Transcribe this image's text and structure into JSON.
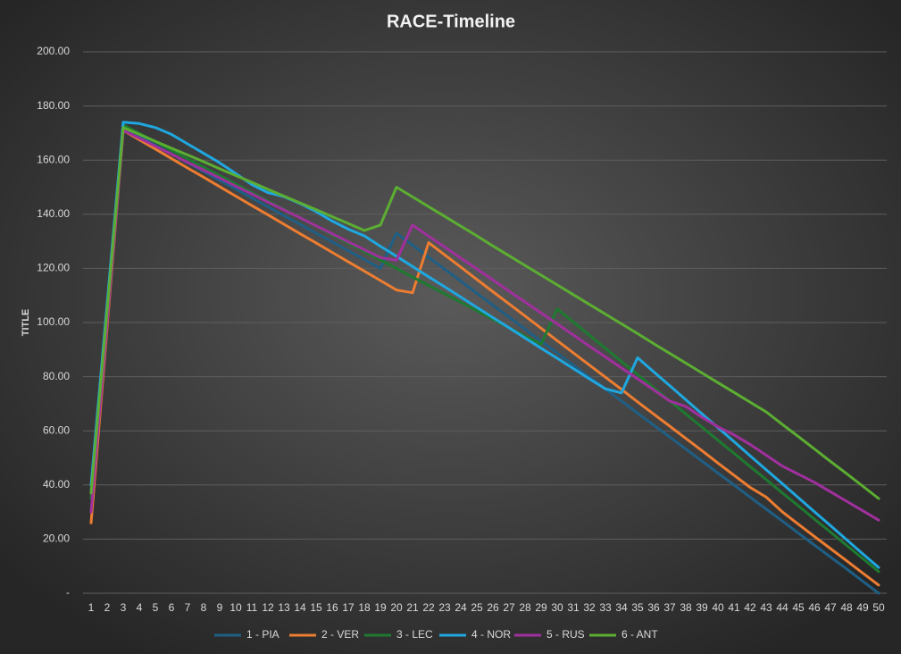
{
  "chart_data": {
    "type": "line",
    "title": "RACE-Timeline",
    "y_label": "TITLE",
    "categories": [
      1,
      2,
      3,
      4,
      5,
      6,
      7,
      8,
      9,
      10,
      11,
      12,
      13,
      14,
      15,
      16,
      17,
      18,
      19,
      20,
      21,
      22,
      23,
      24,
      25,
      26,
      27,
      28,
      29,
      30,
      31,
      32,
      33,
      34,
      35,
      36,
      37,
      38,
      39,
      40,
      41,
      42,
      43,
      44,
      45,
      46,
      47,
      48,
      49,
      50
    ],
    "ylim": [
      0,
      200
    ],
    "yticks": [
      {
        "value": 0,
        "label": "-"
      },
      {
        "value": 20,
        "label": "20.00"
      },
      {
        "value": 40,
        "label": "40.00"
      },
      {
        "value": 60,
        "label": "60.00"
      },
      {
        "value": 80,
        "label": "80.00"
      },
      {
        "value": 100,
        "label": "100.00"
      },
      {
        "value": 120,
        "label": "120.00"
      },
      {
        "value": 140,
        "label": "140.00"
      },
      {
        "value": 160,
        "label": "160.00"
      },
      {
        "value": 180,
        "label": "180.00"
      },
      {
        "value": 200,
        "label": "200.00"
      }
    ],
    "grid": true,
    "legend": "bottom",
    "series": [
      {
        "name": "1 - PIA",
        "color": "#1f5f85",
        "values": [
          38,
          105,
          172,
          168.8,
          165.5,
          162.3,
          159,
          155.8,
          152.5,
          149.3,
          146,
          142.8,
          139.5,
          136.3,
          133,
          129.8,
          126.5,
          123.3,
          120,
          133,
          128.6,
          124.1,
          119.7,
          115.3,
          110.8,
          106.4,
          102,
          97.6,
          93.1,
          88.7,
          84.3,
          79.8,
          75.4,
          71,
          66.5,
          62.1,
          57.7,
          53.3,
          48.8,
          44.4,
          40,
          35.5,
          31.1,
          26.7,
          22.2,
          17.8,
          13.4,
          9,
          4.5,
          0
        ]
      },
      {
        "name": "2 - VER",
        "color": "#ed7d31",
        "values": [
          26,
          98.5,
          171,
          167.5,
          164.1,
          160.6,
          157.1,
          153.7,
          150.2,
          146.7,
          143.2,
          139.8,
          136.3,
          132.8,
          129.4,
          125.9,
          122.4,
          119,
          115.5,
          112,
          111,
          129.5,
          125,
          120.5,
          115.9,
          111.4,
          106.9,
          102.4,
          97.9,
          93.3,
          88.8,
          84.3,
          79.8,
          75.3,
          70.7,
          66.2,
          61.7,
          57.2,
          52.7,
          48.1,
          43.6,
          39.1,
          35.5,
          30.1,
          25.5,
          21,
          16.5,
          12,
          7.5,
          3
        ]
      },
      {
        "name": "3 - LEC",
        "color": "#1e7a30",
        "values": [
          35,
          104,
          173,
          169.9,
          166.8,
          163.6,
          160.5,
          157.4,
          154.3,
          151.2,
          148,
          144.9,
          141.8,
          138.7,
          135.6,
          132.4,
          129.3,
          126.2,
          123.1,
          120,
          116.8,
          113.7,
          110.6,
          107.5,
          104.4,
          101.2,
          98.1,
          95,
          92,
          105,
          100.2,
          95.3,
          90.5,
          85.6,
          80.8,
          75.9,
          71.1,
          66.2,
          61.4,
          56.5,
          51.7,
          46.8,
          42,
          37.1,
          32.3,
          27.4,
          22.6,
          17.7,
          12.9,
          8
        ]
      },
      {
        "name": "4 - NOR",
        "color": "#1fa7df",
        "values": [
          40,
          107,
          174,
          173.5,
          172,
          169.5,
          166,
          162.5,
          159,
          155,
          151,
          148,
          146.5,
          144,
          141,
          137.5,
          134.5,
          132,
          128.2,
          124.5,
          120.7,
          116.9,
          113.2,
          109.4,
          105.6,
          101.8,
          98.1,
          94.3,
          90.5,
          86.8,
          83,
          79.2,
          75.5,
          74,
          87,
          81.8,
          76.7,
          71.5,
          66.3,
          61.2,
          56,
          50.8,
          45.6,
          40.5,
          35.3,
          30.1,
          25,
          19.8,
          14.6,
          9.5
        ]
      },
      {
        "name": "5 - RUS",
        "color": "#a0309d",
        "values": [
          30,
          100.5,
          171,
          168.1,
          165.1,
          162.2,
          159.2,
          156.3,
          153.4,
          150.4,
          147.5,
          144.5,
          141.6,
          138.7,
          135.7,
          132.8,
          129.8,
          126.9,
          124,
          123,
          136,
          131.9,
          127.9,
          123.8,
          119.8,
          115.7,
          111.6,
          107.6,
          103.5,
          99.5,
          95.4,
          91.3,
          87.3,
          83.2,
          79.2,
          75.1,
          71,
          69,
          65,
          61.5,
          58.5,
          55,
          51,
          47,
          44,
          41,
          37.5,
          34,
          30.5,
          27
        ]
      },
      {
        "name": "6 - ANT",
        "color": "#5cae32",
        "values": [
          37,
          104.5,
          172,
          169.5,
          166.9,
          164.4,
          161.9,
          159.4,
          156.8,
          154.3,
          151.8,
          149.2,
          146.7,
          144.2,
          141.7,
          139.1,
          136.6,
          134,
          136,
          150,
          146.4,
          142.8,
          139.2,
          135.6,
          132,
          128.3,
          124.7,
          121.1,
          117.5,
          113.9,
          110.3,
          106.7,
          103.1,
          99.5,
          95.9,
          92.2,
          88.6,
          85,
          81.4,
          77.8,
          74.2,
          70.6,
          67,
          62.4,
          57.9,
          53.3,
          48.7,
          44.2,
          39.6,
          35
        ]
      }
    ]
  }
}
